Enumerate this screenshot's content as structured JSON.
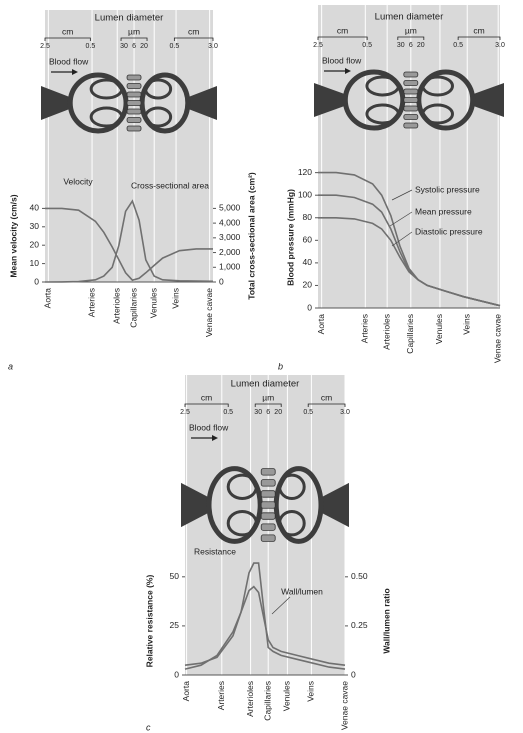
{
  "chart_data": [
    {
      "type": "line",
      "panel_label": "a",
      "diagram": {
        "title": "Lumen diameter",
        "left_unit": "cm",
        "left_ticks": [
          "2.5",
          "0.5"
        ],
        "mid_unit": "µm",
        "mid_ticks": [
          "30",
          "6",
          "20"
        ],
        "right_unit": "cm",
        "right_ticks": [
          "0.5",
          "3.0"
        ],
        "flow_label": "Blood flow"
      },
      "y_label": "Mean velocity (cm/s)",
      "y2_label": "Total cross-sectional area (cm²)",
      "xlim": [
        0,
        10
      ],
      "xticks": [
        {
          "value": 0.2,
          "label": "Aorta"
        },
        {
          "value": 2.8,
          "label": "Arteries"
        },
        {
          "value": 4.3,
          "label": "Arterioles"
        },
        {
          "value": 5.3,
          "label": "Capillaries"
        },
        {
          "value": 6.5,
          "label": "Venules"
        },
        {
          "value": 7.8,
          "label": "Veins"
        },
        {
          "value": 9.8,
          "label": "Venae cavae"
        }
      ],
      "ylim": [
        0,
        50
      ],
      "yticks": [
        0,
        10,
        20,
        30,
        40
      ],
      "y2lim": [
        0,
        6250
      ],
      "y2ticks": [
        0,
        {
          "value": 1000,
          "label": "1,000"
        },
        {
          "value": 2000,
          "label": "2,000"
        },
        {
          "value": 3000,
          "label": "3,000"
        },
        {
          "value": 4000,
          "label": "4,000"
        },
        {
          "value": 5000,
          "label": "5,000"
        }
      ],
      "x": [
        0,
        1,
        2,
        3,
        3.5,
        4,
        4.4,
        4.8,
        5.2,
        5.6,
        6,
        6.5,
        7,
        8,
        9,
        10
      ],
      "series": [
        {
          "name": "Velocity",
          "color": "#707070",
          "values": [
            40,
            40,
            39,
            33,
            27,
            19,
            12,
            5,
            1,
            2,
            5,
            9,
            13,
            17,
            18,
            18
          ]
        },
        {
          "name": "Cross-sectional area",
          "color": "#707070",
          "axis": "y2",
          "values": [
            0,
            10,
            30,
            150,
            400,
            1000,
            2500,
            4800,
            5500,
            4200,
            1500,
            400,
            150,
            80,
            60,
            50
          ]
        }
      ]
    },
    {
      "type": "line",
      "panel_label": "b",
      "diagram": {
        "title": "Lumen diameter",
        "left_unit": "cm",
        "left_ticks": [
          "2.5",
          "0.5"
        ],
        "mid_unit": "µm",
        "mid_ticks": [
          "30",
          "6",
          "20"
        ],
        "right_unit": "cm",
        "right_ticks": [
          "0.5",
          "3.0"
        ],
        "flow_label": "Blood flow"
      },
      "y_label": "Blood pressure (mmHg)",
      "xlim": [
        0,
        10
      ],
      "xticks": [
        {
          "value": 0.2,
          "label": "Aorta"
        },
        {
          "value": 2.6,
          "label": "Arteries"
        },
        {
          "value": 3.8,
          "label": "Arterioles"
        },
        {
          "value": 5.1,
          "label": "Capillaries"
        },
        {
          "value": 6.7,
          "label": "Venules"
        },
        {
          "value": 8.2,
          "label": "Veins"
        },
        {
          "value": 9.9,
          "label": "Venae cavae"
        }
      ],
      "ylim": [
        0,
        125
      ],
      "yticks": [
        0,
        20,
        40,
        60,
        80,
        100,
        120
      ],
      "x": [
        0,
        1,
        2,
        3,
        3.5,
        4,
        4.5,
        5,
        5.5,
        6,
        7,
        8,
        9,
        10
      ],
      "series": [
        {
          "name": "Systolic pressure",
          "color": "#707070",
          "values": [
            120,
            120,
            118,
            110,
            100,
            82,
            55,
            35,
            25,
            20,
            15,
            10,
            6,
            2
          ]
        },
        {
          "name": "Mean pressure",
          "color": "#707070",
          "values": [
            100,
            100,
            98,
            92,
            85,
            70,
            50,
            33,
            25,
            20,
            15,
            10,
            6,
            2
          ]
        },
        {
          "name": "Diastolic pressure",
          "color": "#707070",
          "values": [
            80,
            80,
            79,
            75,
            70,
            60,
            45,
            32,
            25,
            20,
            15,
            10,
            6,
            2
          ]
        }
      ]
    },
    {
      "type": "line",
      "panel_label": "c",
      "diagram": {
        "title": "Lumen diameter",
        "left_unit": "cm",
        "left_ticks": [
          "2.5",
          "0.5"
        ],
        "mid_unit": "µm",
        "mid_ticks": [
          "30",
          "6",
          "20"
        ],
        "right_unit": "cm",
        "right_ticks": [
          "0.5",
          "3.0"
        ],
        "flow_label": "Blood flow"
      },
      "y_label": "Relative resistance (%)",
      "y2_label": "Wall/lumen ratio",
      "xlim": [
        0,
        10
      ],
      "xticks": [
        {
          "value": 0.1,
          "label": "Aorta"
        },
        {
          "value": 2.3,
          "label": "Arteries"
        },
        {
          "value": 4.1,
          "label": "Arterioles"
        },
        {
          "value": 5.2,
          "label": "Capillaries"
        },
        {
          "value": 6.4,
          "label": "Venules"
        },
        {
          "value": 7.9,
          "label": "Veins"
        },
        {
          "value": 10,
          "label": "Venae cavae"
        }
      ],
      "ylim": [
        0,
        55
      ],
      "yticks": [
        0,
        25,
        50
      ],
      "y2lim": [
        0,
        0.55
      ],
      "y2ticks": [
        0,
        0.25,
        {
          "value": 0.5,
          "label": "0.50"
        }
      ],
      "x": [
        0,
        1,
        2,
        3,
        3.5,
        4,
        4.3,
        4.6,
        4.9,
        5.2,
        5.5,
        6,
        7,
        8,
        9,
        10
      ],
      "series": [
        {
          "name": "Resistance",
          "color": "#707070",
          "values": [
            5,
            6,
            9,
            20,
            32,
            52,
            57,
            57,
            35,
            14,
            12,
            10,
            8,
            6,
            4,
            3
          ]
        },
        {
          "name": "Wall/lumen",
          "color": "#707070",
          "axis": "y2",
          "values": [
            0.03,
            0.05,
            0.1,
            0.22,
            0.32,
            0.43,
            0.45,
            0.42,
            0.3,
            0.18,
            0.14,
            0.12,
            0.1,
            0.08,
            0.06,
            0.05
          ]
        }
      ]
    }
  ]
}
